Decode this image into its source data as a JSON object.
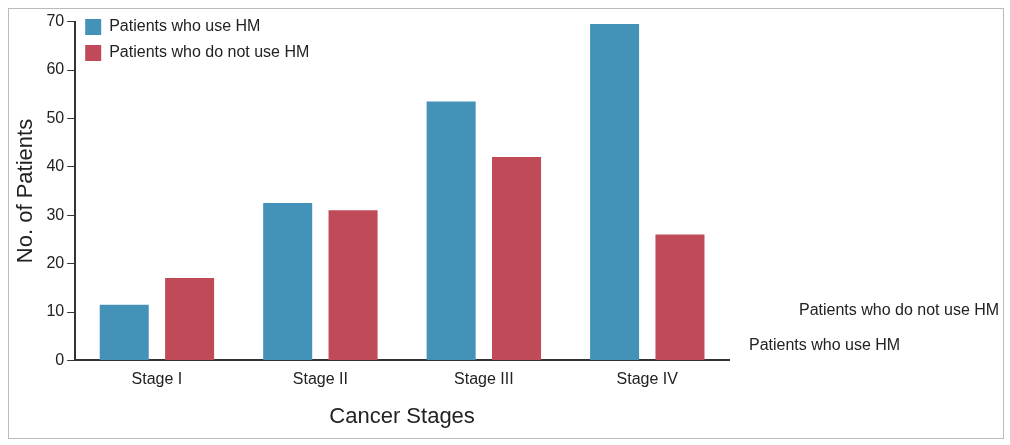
{
  "chart_data": {
    "type": "bar",
    "xlabel": "Cancer Stages",
    "ylabel": "No. of Patients",
    "categories": [
      "Stage I",
      "Stage II",
      "Stage III",
      "Stage IV"
    ],
    "series": [
      {
        "name": "Patients who use HM",
        "color": "#4592b9",
        "values": [
          11.5,
          32.5,
          53.5,
          69.5
        ]
      },
      {
        "name": "Patients who do not use HM",
        "color": "#c04a57",
        "values": [
          17,
          31,
          42,
          26
        ]
      }
    ],
    "ylim": [
      0,
      70
    ],
    "yticks": [
      0,
      10,
      20,
      30,
      40,
      50,
      60,
      70
    ],
    "grid": false,
    "legend": "top left",
    "annotations": [
      "Patients who do not use HM",
      "Patients who use HM"
    ]
  }
}
